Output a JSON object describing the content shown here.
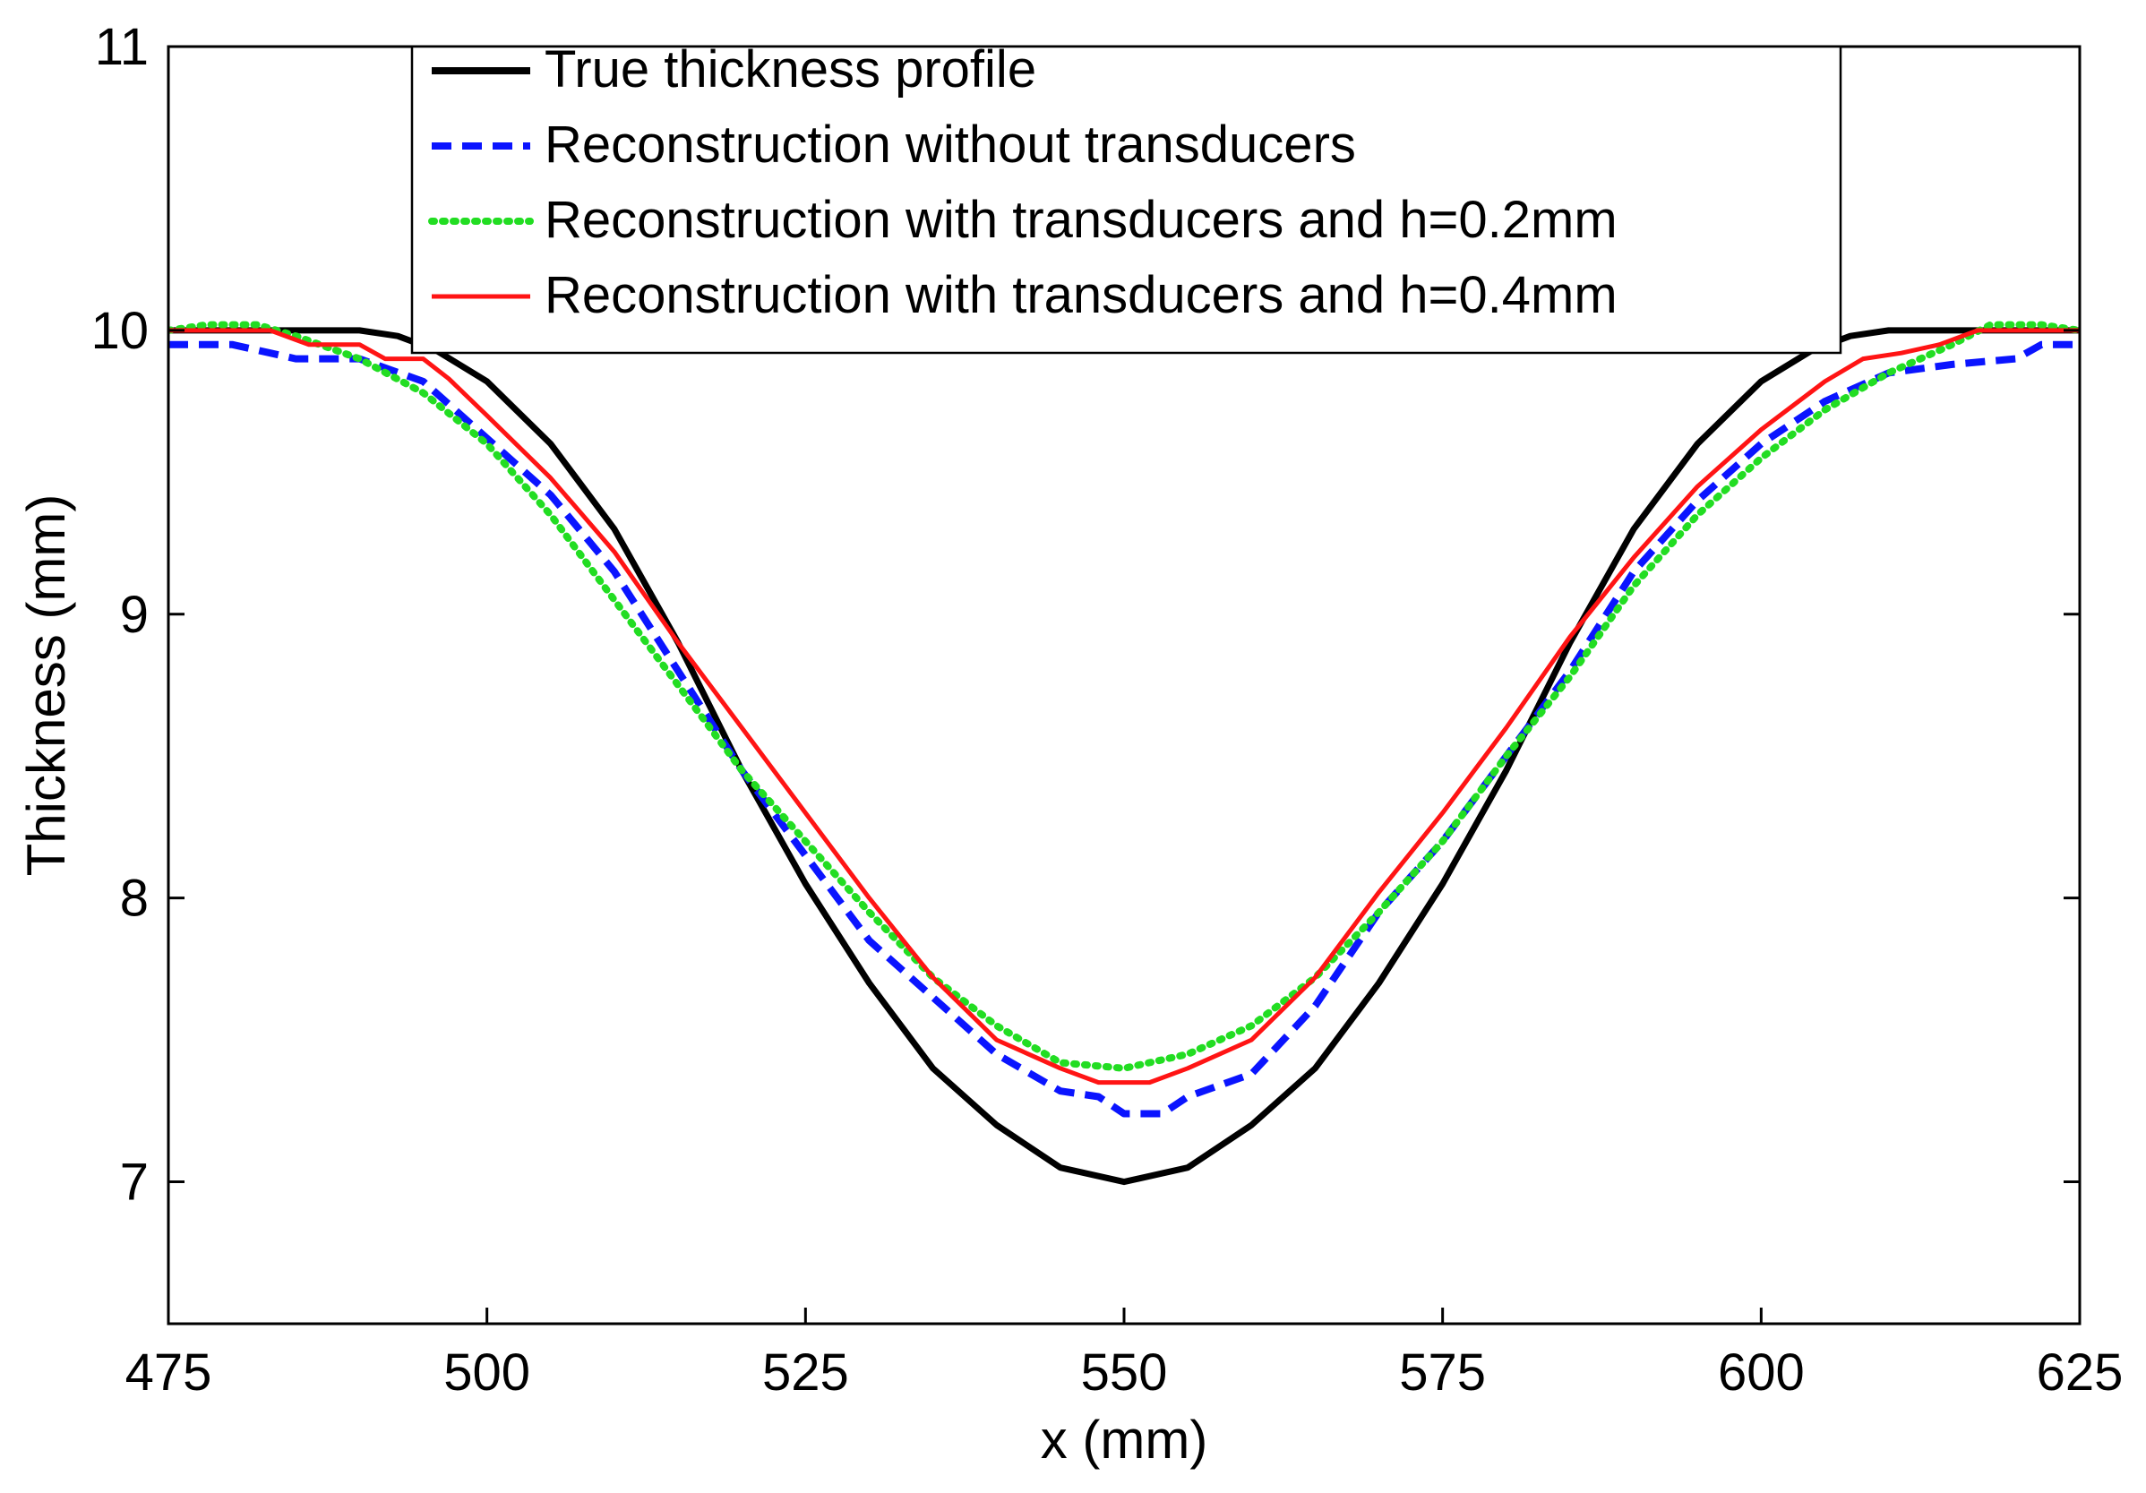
{
  "chart_data": {
    "type": "line",
    "title": "",
    "xlabel": "x (mm)",
    "ylabel": "Thickness (mm)",
    "xlim": [
      475,
      625
    ],
    "ylim": [
      6.5,
      11
    ],
    "xticks": [
      475,
      500,
      525,
      550,
      575,
      600,
      625
    ],
    "yticks": [
      7,
      8,
      9,
      10,
      11
    ],
    "grid": false,
    "legend_position": "top",
    "series": [
      {
        "name": "True thickness profile",
        "color": "#000000",
        "style": "solid",
        "points": [
          [
            475,
            10
          ],
          [
            480,
            10
          ],
          [
            485,
            10
          ],
          [
            490,
            10
          ],
          [
            493,
            9.98
          ],
          [
            496,
            9.93
          ],
          [
            500,
            9.82
          ],
          [
            505,
            9.6
          ],
          [
            510,
            9.3
          ],
          [
            515,
            8.9
          ],
          [
            520,
            8.45
          ],
          [
            525,
            8.05
          ],
          [
            530,
            7.7
          ],
          [
            535,
            7.4
          ],
          [
            540,
            7.2
          ],
          [
            545,
            7.05
          ],
          [
            550,
            7.0
          ],
          [
            555,
            7.05
          ],
          [
            560,
            7.2
          ],
          [
            565,
            7.4
          ],
          [
            570,
            7.7
          ],
          [
            575,
            8.05
          ],
          [
            580,
            8.45
          ],
          [
            585,
            8.9
          ],
          [
            590,
            9.3
          ],
          [
            595,
            9.6
          ],
          [
            600,
            9.82
          ],
          [
            604,
            9.93
          ],
          [
            607,
            9.98
          ],
          [
            610,
            10
          ],
          [
            615,
            10
          ],
          [
            620,
            10
          ],
          [
            625,
            10
          ]
        ]
      },
      {
        "name": "Reconstruction without transducers",
        "color": "#0a14ff",
        "style": "dashed",
        "points": [
          [
            475,
            9.95
          ],
          [
            480,
            9.95
          ],
          [
            483,
            9.92
          ],
          [
            485,
            9.9
          ],
          [
            490,
            9.9
          ],
          [
            495,
            9.82
          ],
          [
            500,
            9.62
          ],
          [
            505,
            9.42
          ],
          [
            510,
            9.15
          ],
          [
            515,
            8.8
          ],
          [
            520,
            8.45
          ],
          [
            525,
            8.15
          ],
          [
            530,
            7.85
          ],
          [
            535,
            7.65
          ],
          [
            540,
            7.45
          ],
          [
            545,
            7.32
          ],
          [
            548,
            7.3
          ],
          [
            550,
            7.24
          ],
          [
            553,
            7.24
          ],
          [
            555,
            7.3
          ],
          [
            560,
            7.38
          ],
          [
            565,
            7.62
          ],
          [
            570,
            7.95
          ],
          [
            575,
            8.2
          ],
          [
            580,
            8.5
          ],
          [
            585,
            8.8
          ],
          [
            590,
            9.15
          ],
          [
            595,
            9.4
          ],
          [
            600,
            9.6
          ],
          [
            605,
            9.75
          ],
          [
            610,
            9.85
          ],
          [
            615,
            9.88
          ],
          [
            620,
            9.9
          ],
          [
            622,
            9.95
          ],
          [
            625,
            9.95
          ]
        ]
      },
      {
        "name": "Reconstruction with transducers and h=0.2mm",
        "color": "#22dd22",
        "style": "dotted",
        "points": [
          [
            475,
            10
          ],
          [
            478,
            10.02
          ],
          [
            482,
            10.02
          ],
          [
            485,
            9.98
          ],
          [
            490,
            9.9
          ],
          [
            495,
            9.78
          ],
          [
            500,
            9.6
          ],
          [
            505,
            9.35
          ],
          [
            510,
            9.05
          ],
          [
            515,
            8.75
          ],
          [
            520,
            8.45
          ],
          [
            525,
            8.2
          ],
          [
            530,
            7.95
          ],
          [
            535,
            7.72
          ],
          [
            540,
            7.55
          ],
          [
            545,
            7.42
          ],
          [
            550,
            7.4
          ],
          [
            555,
            7.45
          ],
          [
            560,
            7.55
          ],
          [
            565,
            7.72
          ],
          [
            570,
            7.95
          ],
          [
            575,
            8.2
          ],
          [
            580,
            8.5
          ],
          [
            585,
            8.78
          ],
          [
            590,
            9.1
          ],
          [
            595,
            9.35
          ],
          [
            600,
            9.55
          ],
          [
            605,
            9.72
          ],
          [
            610,
            9.85
          ],
          [
            615,
            9.95
          ],
          [
            618,
            10.02
          ],
          [
            622,
            10.02
          ],
          [
            625,
            10
          ]
        ]
      },
      {
        "name": "Reconstruction with transducers and h=0.4mm",
        "color": "#ff1414",
        "style": "solid",
        "points": [
          [
            475,
            10
          ],
          [
            483,
            10
          ],
          [
            486,
            9.95
          ],
          [
            490,
            9.95
          ],
          [
            492,
            9.9
          ],
          [
            495,
            9.9
          ],
          [
            497,
            9.83
          ],
          [
            500,
            9.7
          ],
          [
            505,
            9.48
          ],
          [
            510,
            9.22
          ],
          [
            515,
            8.9
          ],
          [
            520,
            8.6
          ],
          [
            525,
            8.3
          ],
          [
            530,
            8.0
          ],
          [
            535,
            7.72
          ],
          [
            540,
            7.5
          ],
          [
            545,
            7.4
          ],
          [
            548,
            7.35
          ],
          [
            552,
            7.35
          ],
          [
            555,
            7.4
          ],
          [
            560,
            7.5
          ],
          [
            565,
            7.72
          ],
          [
            570,
            8.02
          ],
          [
            575,
            8.3
          ],
          [
            580,
            8.6
          ],
          [
            585,
            8.92
          ],
          [
            590,
            9.2
          ],
          [
            595,
            9.45
          ],
          [
            600,
            9.65
          ],
          [
            605,
            9.82
          ],
          [
            608,
            9.9
          ],
          [
            611,
            9.92
          ],
          [
            614,
            9.95
          ],
          [
            617,
            10
          ],
          [
            625,
            10
          ]
        ]
      }
    ]
  }
}
